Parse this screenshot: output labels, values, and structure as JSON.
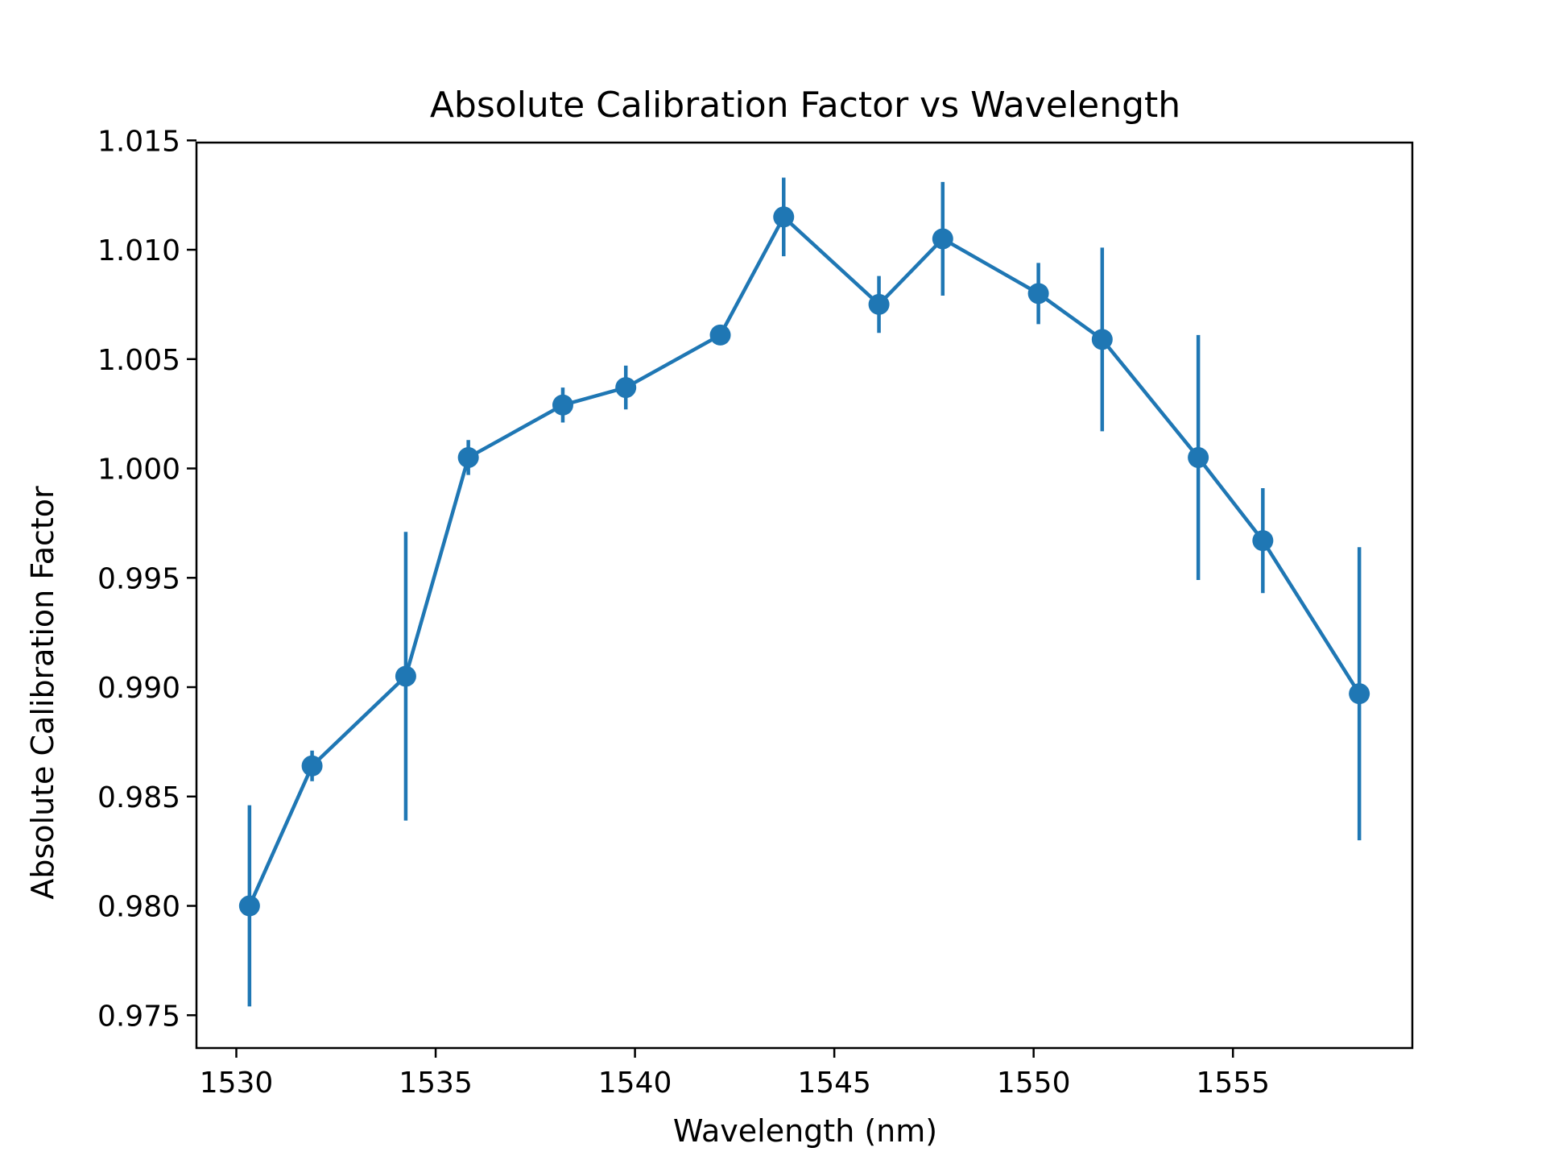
{
  "chart_data": {
    "type": "line",
    "title": "Absolute Calibration Factor vs Wavelength",
    "xlabel": "Wavelength (nm)",
    "ylabel": "Absolute Calibration Factor",
    "xlim": [
      1529,
      1559.5
    ],
    "ylim": [
      0.9735,
      1.0149
    ],
    "xticks": [
      "1530",
      "1535",
      "1540",
      "1545",
      "1550",
      "1555"
    ],
    "yticks": [
      "0.975",
      "0.980",
      "0.985",
      "0.990",
      "0.995",
      "1.000",
      "1.005",
      "1.010",
      "1.015"
    ],
    "grid": false,
    "legend": "none",
    "color": "#1f77b4",
    "series": [
      {
        "x": [
          1530.33,
          1531.9,
          1534.25,
          1535.82,
          1538.19,
          1539.77,
          1542.14,
          1543.73,
          1546.12,
          1547.72,
          1550.12,
          1551.72,
          1554.13,
          1555.75,
          1558.17
        ],
        "y": [
          0.98,
          0.9864,
          0.9905,
          1.0005,
          1.0029,
          1.0037,
          1.0061,
          1.0115,
          1.0075,
          1.0105,
          1.008,
          1.0059,
          1.0005,
          0.9967,
          0.9897
        ],
        "yerr": [
          0.0046,
          0.0007,
          0.0066,
          0.0008,
          0.0008,
          0.001,
          0.0001,
          0.0018,
          0.0013,
          0.0026,
          0.0014,
          0.0042,
          0.0056,
          0.0024,
          0.0067
        ]
      }
    ]
  }
}
